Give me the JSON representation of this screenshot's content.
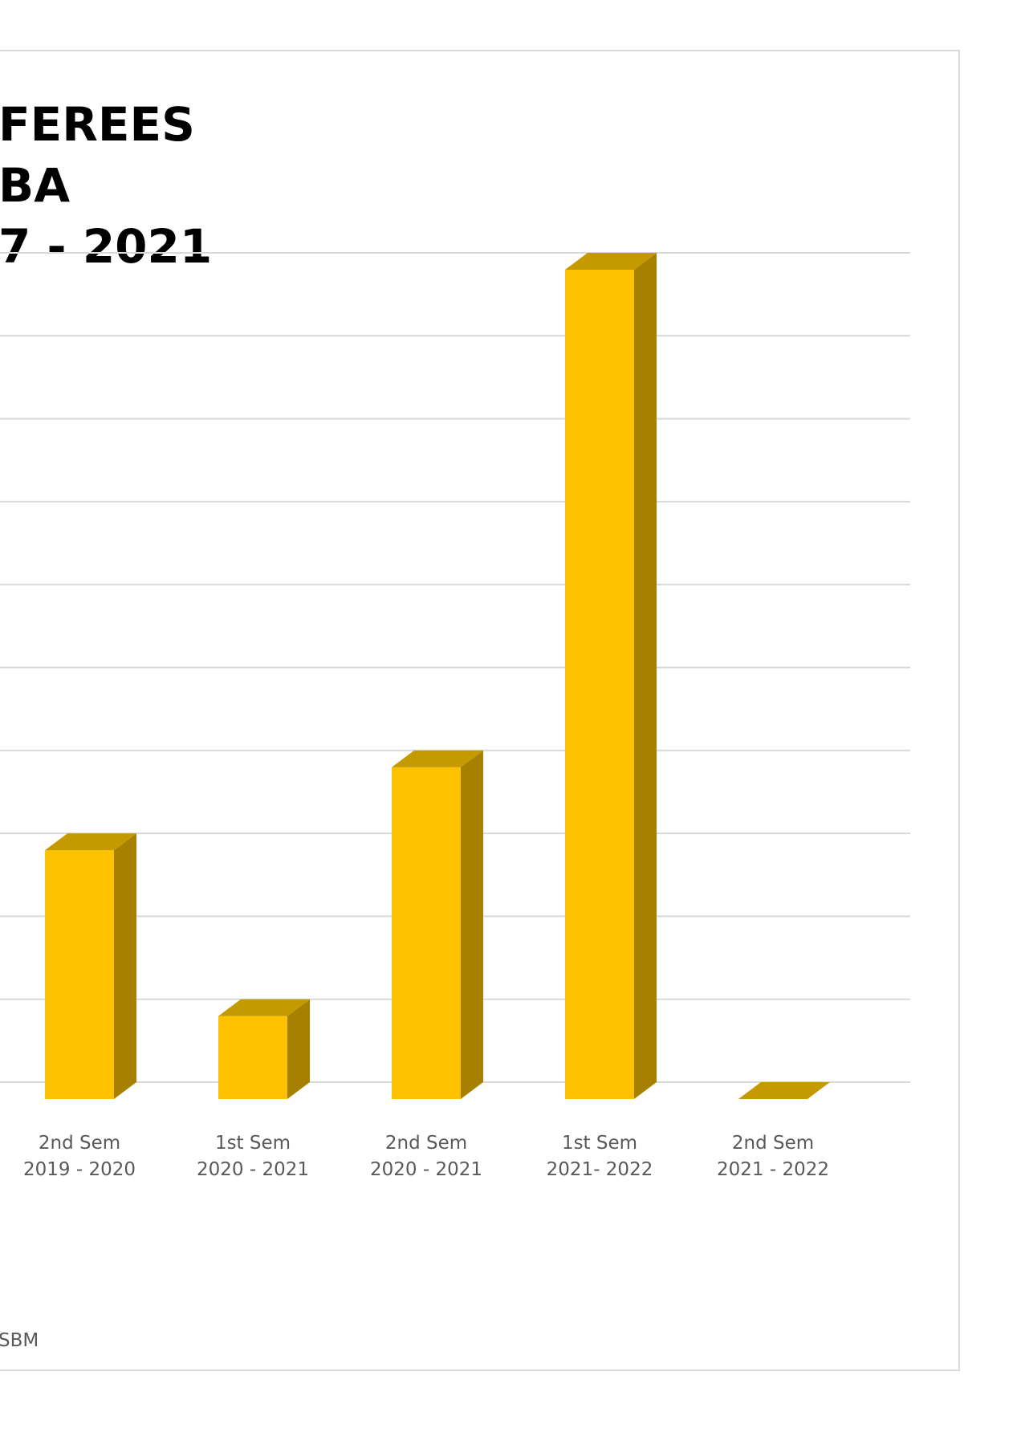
{
  "chart_data": {
    "type": "bar",
    "title_lines": [
      "FEREES",
      "BA",
      "7 - 2021"
    ],
    "categories": [
      [
        "2nd Sem",
        "2019 - 2020"
      ],
      [
        "1st Sem",
        "2020 - 2021"
      ],
      [
        "2nd Sem",
        "2020 - 2021"
      ],
      [
        "1st Sem",
        "2021- 2022"
      ],
      [
        "2nd Sem",
        "2021 - 2022"
      ]
    ],
    "values": [
      3,
      1,
      4,
      10,
      0
    ],
    "ylim": [
      0,
      10
    ],
    "grid": true,
    "legend": "none",
    "footnote": "SBM",
    "colors": {
      "bar_front": "#FCC200",
      "bar_top": "#C49A00",
      "bar_side": "#A88000",
      "grid": "#d9d9d9"
    }
  }
}
